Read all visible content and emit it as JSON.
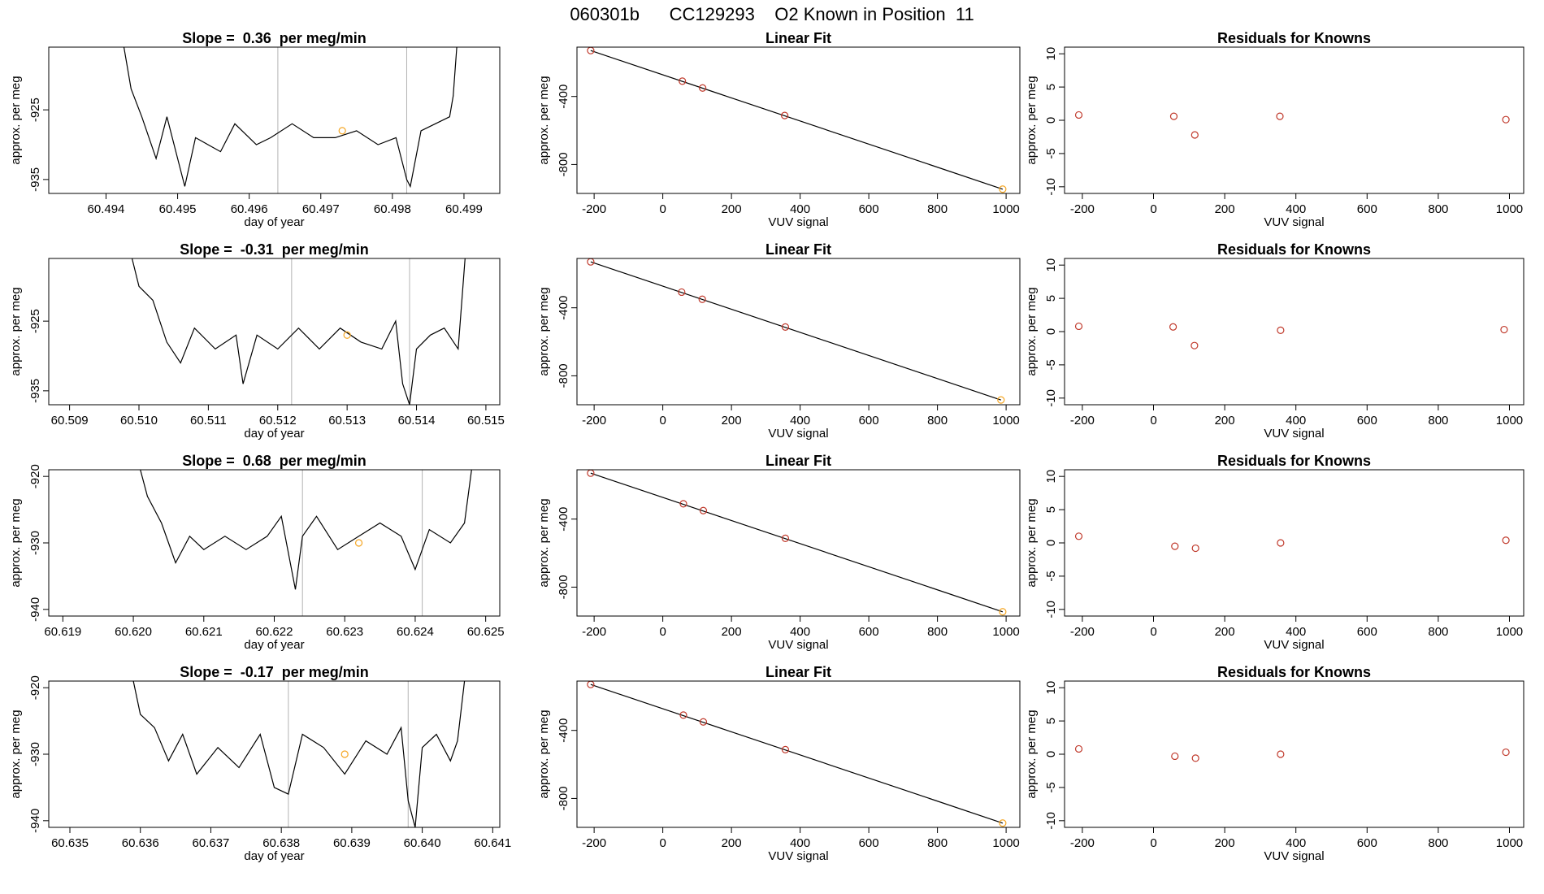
{
  "figure": {
    "title": "060301b      CC129293    O2 Known in Position  11",
    "colors": {
      "line": "#000000",
      "grid": "#b3b3b3",
      "highlight": "#f5a623",
      "residual": "#c0392b"
    }
  },
  "chart_data": [
    {
      "type": "line",
      "title": "Slope =  0.36  per meg/min",
      "xlabel": "day of year",
      "ylabel": "approx. per meg",
      "xlim": [
        60.4932,
        60.4995
      ],
      "ylim": [
        -937,
        -916
      ],
      "xticks": [
        60.494,
        60.495,
        60.496,
        60.497,
        60.498,
        60.499
      ],
      "xtick_labels": [
        "60.494",
        "60.495",
        "60.496",
        "60.497",
        "60.498",
        "60.499"
      ],
      "yticks": [
        -925,
        -935
      ],
      "ytick_labels": [
        "-925",
        "-935"
      ],
      "vlines": [
        60.4964,
        60.4982
      ],
      "highlight": {
        "x": 60.4973,
        "y": -928
      },
      "series": [
        {
          "x": [
            60.49425,
            60.49435,
            60.4945,
            60.4947,
            60.49485,
            60.495,
            60.4951,
            60.49525,
            60.4956,
            60.4958,
            60.4961,
            60.4963,
            60.4966,
            60.4969,
            60.4972,
            60.4975,
            60.4978,
            60.49805,
            60.4982,
            60.49825,
            60.4984,
            60.4986,
            60.4988,
            60.49885,
            60.4989
          ],
          "y": [
            -916,
            -922,
            -926,
            -932,
            -926,
            -932,
            -936,
            -929,
            -931,
            -927,
            -930,
            -929,
            -927,
            -929,
            -929,
            -928,
            -930,
            -929,
            -935,
            -936,
            -928,
            -927,
            -926,
            -923,
            -916
          ]
        }
      ]
    },
    {
      "type": "scatter",
      "title": "Linear Fit",
      "xlabel": "VUV signal",
      "ylabel": "approx. per meg",
      "xlim": [
        -250,
        1040
      ],
      "ylim": [
        -970,
        -110
      ],
      "xticks": [
        -200,
        0,
        200,
        400,
        600,
        800,
        1000
      ],
      "xtick_labels": [
        "-200",
        "0",
        "200",
        "400",
        "600",
        "800",
        "1000"
      ],
      "yticks": [
        -400,
        -800
      ],
      "ytick_labels": [
        "-400",
        "-800"
      ],
      "fit_line": [
        [
          -210,
          -130
        ],
        [
          990,
          -945
        ]
      ],
      "points": [
        {
          "x": -210,
          "y": -130
        },
        {
          "x": 57,
          "y": -310
        },
        {
          "x": 116,
          "y": -350
        },
        {
          "x": 355,
          "y": -512
        },
        {
          "x": 990,
          "y": -945
        }
      ]
    },
    {
      "type": "scatter",
      "title": "Residuals for Knowns",
      "xlabel": "VUV signal",
      "ylabel": "approx. per meg",
      "xlim": [
        -250,
        1040
      ],
      "ylim": [
        -11,
        11
      ],
      "xticks": [
        -200,
        0,
        200,
        400,
        600,
        800,
        1000
      ],
      "xtick_labels": [
        "-200",
        "0",
        "200",
        "400",
        "600",
        "800",
        "1000"
      ],
      "yticks": [
        10,
        5,
        0,
        -5,
        -10
      ],
      "ytick_labels": [
        "10",
        "5",
        "0",
        "-5",
        "-10"
      ],
      "points": [
        {
          "x": -210,
          "y": 0.8
        },
        {
          "x": 57,
          "y": 0.6
        },
        {
          "x": 116,
          "y": -2.2
        },
        {
          "x": 355,
          "y": 0.6
        },
        {
          "x": 990,
          "y": 0.1
        }
      ]
    },
    {
      "type": "line",
      "title": "Slope =  -0.31  per meg/min",
      "xlabel": "day of year",
      "ylabel": "approx. per meg",
      "xlim": [
        60.5087,
        60.5152
      ],
      "ylim": [
        -937,
        -916
      ],
      "xticks": [
        60.509,
        60.51,
        60.511,
        60.512,
        60.513,
        60.514,
        60.515
      ],
      "xtick_labels": [
        "60.509",
        "60.510",
        "60.511",
        "60.512",
        "60.513",
        "60.514",
        "60.515"
      ],
      "yticks": [
        -925,
        -935
      ],
      "ytick_labels": [
        "-925",
        "-935"
      ],
      "vlines": [
        60.5122,
        60.5139
      ],
      "highlight": {
        "x": 60.513,
        "y": -927
      },
      "series": [
        {
          "x": [
            60.5099,
            60.51,
            60.5102,
            60.5104,
            60.5106,
            60.5108,
            60.5111,
            60.5114,
            60.5115,
            60.5117,
            60.512,
            60.5123,
            60.5126,
            60.5129,
            60.5132,
            60.5135,
            60.5137,
            60.5138,
            60.5139,
            60.514,
            60.5142,
            60.5144,
            60.5146,
            60.5147
          ],
          "y": [
            -916,
            -920,
            -922,
            -928,
            -931,
            -926,
            -929,
            -927,
            -934,
            -927,
            -929,
            -926,
            -929,
            -926,
            -928,
            -929,
            -925,
            -934,
            -937,
            -929,
            -927,
            -926,
            -929,
            -916
          ]
        }
      ]
    },
    {
      "type": "scatter",
      "title": "Linear Fit",
      "xlabel": "VUV signal",
      "ylabel": "approx. per meg",
      "xlim": [
        -250,
        1040
      ],
      "ylim": [
        -970,
        -110
      ],
      "xticks": [
        -200,
        0,
        200,
        400,
        600,
        800,
        1000
      ],
      "xtick_labels": [
        "-200",
        "0",
        "200",
        "400",
        "600",
        "800",
        "1000"
      ],
      "yticks": [
        -400,
        -800
      ],
      "ytick_labels": [
        "-400",
        "-800"
      ],
      "fit_line": [
        [
          -210,
          -130
        ],
        [
          985,
          -942
        ]
      ],
      "points": [
        {
          "x": -210,
          "y": -130
        },
        {
          "x": 55,
          "y": -308
        },
        {
          "x": 115,
          "y": -350
        },
        {
          "x": 357,
          "y": -513
        },
        {
          "x": 985,
          "y": -942
        }
      ]
    },
    {
      "type": "scatter",
      "title": "Residuals for Knowns",
      "xlabel": "VUV signal",
      "ylabel": "approx. per meg",
      "xlim": [
        -250,
        1040
      ],
      "ylim": [
        -11,
        11
      ],
      "xticks": [
        -200,
        0,
        200,
        400,
        600,
        800,
        1000
      ],
      "xtick_labels": [
        "-200",
        "0",
        "200",
        "400",
        "600",
        "800",
        "1000"
      ],
      "yticks": [
        10,
        5,
        0,
        -5,
        -10
      ],
      "ytick_labels": [
        "10",
        "5",
        "0",
        "-5",
        "-10"
      ],
      "points": [
        {
          "x": -210,
          "y": 0.8
        },
        {
          "x": 55,
          "y": 0.7
        },
        {
          "x": 115,
          "y": -2.1
        },
        {
          "x": 357,
          "y": 0.2
        },
        {
          "x": 985,
          "y": 0.3
        }
      ]
    },
    {
      "type": "line",
      "title": "Slope =  0.68  per meg/min",
      "xlabel": "day of year",
      "ylabel": "approx. per meg",
      "xlim": [
        60.6188,
        60.6252
      ],
      "ylim": [
        -941,
        -919
      ],
      "xticks": [
        60.619,
        60.62,
        60.621,
        60.622,
        60.623,
        60.624,
        60.625
      ],
      "xtick_labels": [
        "60.619",
        "60.620",
        "60.621",
        "60.622",
        "60.623",
        "60.624",
        "60.625"
      ],
      "yticks": [
        -920,
        -930,
        -940
      ],
      "ytick_labels": [
        "-920",
        "-930",
        "-940"
      ],
      "vlines": [
        60.6224,
        60.6241
      ],
      "highlight": {
        "x": 60.6232,
        "y": -930
      },
      "series": [
        {
          "x": [
            60.6201,
            60.6202,
            60.6204,
            60.6206,
            60.6208,
            60.621,
            60.6213,
            60.6216,
            60.6219,
            60.6221,
            60.6223,
            60.6224,
            60.6226,
            60.6229,
            60.6232,
            60.6235,
            60.6238,
            60.624,
            60.6242,
            60.6245,
            60.6247,
            60.6248
          ],
          "y": [
            -919,
            -923,
            -927,
            -933,
            -929,
            -931,
            -929,
            -931,
            -929,
            -926,
            -937,
            -929,
            -926,
            -931,
            -929,
            -927,
            -929,
            -934,
            -928,
            -930,
            -927,
            -919
          ]
        }
      ]
    },
    {
      "type": "scatter",
      "title": "Linear Fit",
      "xlabel": "VUV signal",
      "ylabel": "approx. per meg",
      "xlim": [
        -250,
        1040
      ],
      "ylim": [
        -970,
        -110
      ],
      "xticks": [
        -200,
        0,
        200,
        400,
        600,
        800,
        1000
      ],
      "xtick_labels": [
        "-200",
        "0",
        "200",
        "400",
        "600",
        "800",
        "1000"
      ],
      "yticks": [
        -400,
        -800
      ],
      "ytick_labels": [
        "-400",
        "-800"
      ],
      "fit_line": [
        [
          -210,
          -130
        ],
        [
          990,
          -945
        ]
      ],
      "points": [
        {
          "x": -210,
          "y": -130
        },
        {
          "x": 60,
          "y": -310
        },
        {
          "x": 118,
          "y": -350
        },
        {
          "x": 357,
          "y": -513
        },
        {
          "x": 990,
          "y": -945
        }
      ]
    },
    {
      "type": "scatter",
      "title": "Residuals for Knowns",
      "xlabel": "VUV signal",
      "ylabel": "approx. per meg",
      "xlim": [
        -250,
        1040
      ],
      "ylim": [
        -11,
        11
      ],
      "xticks": [
        -200,
        0,
        200,
        400,
        600,
        800,
        1000
      ],
      "xtick_labels": [
        "-200",
        "0",
        "200",
        "400",
        "600",
        "800",
        "1000"
      ],
      "yticks": [
        10,
        5,
        0,
        -5,
        -10
      ],
      "ytick_labels": [
        "10",
        "5",
        "0",
        "-5",
        "-10"
      ],
      "points": [
        {
          "x": -210,
          "y": 1.0
        },
        {
          "x": 60,
          "y": -0.5
        },
        {
          "x": 118,
          "y": -0.8
        },
        {
          "x": 357,
          "y": 0.0
        },
        {
          "x": 990,
          "y": 0.4
        }
      ]
    },
    {
      "type": "line",
      "title": "Slope =  -0.17  per meg/min",
      "xlabel": "day of year",
      "ylabel": "approx. per meg",
      "xlim": [
        60.6347,
        60.6411
      ],
      "ylim": [
        -941,
        -919
      ],
      "xticks": [
        60.635,
        60.636,
        60.637,
        60.638,
        60.639,
        60.64,
        60.641
      ],
      "xtick_labels": [
        "60.635",
        "60.636",
        "60.637",
        "60.638",
        "60.639",
        "60.640",
        "60.641"
      ],
      "yticks": [
        -920,
        -930,
        -940
      ],
      "ytick_labels": [
        "-920",
        "-930",
        "-940"
      ],
      "vlines": [
        60.6381,
        60.6398
      ],
      "highlight": {
        "x": 60.6389,
        "y": -930
      },
      "series": [
        {
          "x": [
            60.6359,
            60.636,
            60.6362,
            60.6364,
            60.6366,
            60.6368,
            60.6371,
            60.6374,
            60.6377,
            60.6379,
            60.6381,
            60.6383,
            60.6386,
            60.6389,
            60.6392,
            60.6395,
            60.6397,
            60.6398,
            60.6399,
            60.64,
            60.6402,
            60.6404,
            60.6405,
            60.6406
          ],
          "y": [
            -919,
            -924,
            -926,
            -931,
            -927,
            -933,
            -929,
            -932,
            -927,
            -935,
            -936,
            -927,
            -929,
            -933,
            -928,
            -930,
            -926,
            -937,
            -941,
            -929,
            -927,
            -931,
            -928,
            -919
          ]
        }
      ]
    },
    {
      "type": "scatter",
      "title": "Linear Fit",
      "xlabel": "VUV signal",
      "ylabel": "approx. per meg",
      "xlim": [
        -250,
        1040
      ],
      "ylim": [
        -970,
        -110
      ],
      "xticks": [
        -200,
        0,
        200,
        400,
        600,
        800,
        1000
      ],
      "xtick_labels": [
        "-200",
        "0",
        "200",
        "400",
        "600",
        "800",
        "1000"
      ],
      "yticks": [
        -400,
        -800
      ],
      "ytick_labels": [
        "-400",
        "-800"
      ],
      "fit_line": [
        [
          -210,
          -130
        ],
        [
          990,
          -945
        ]
      ],
      "points": [
        {
          "x": -210,
          "y": -130
        },
        {
          "x": 60,
          "y": -310
        },
        {
          "x": 118,
          "y": -350
        },
        {
          "x": 357,
          "y": -513
        },
        {
          "x": 990,
          "y": -945
        }
      ]
    },
    {
      "type": "scatter",
      "title": "Residuals for Knowns",
      "xlabel": "VUV signal",
      "ylabel": "approx. per meg",
      "xlim": [
        -250,
        1040
      ],
      "ylim": [
        -11,
        11
      ],
      "xticks": [
        -200,
        0,
        200,
        400,
        600,
        800,
        1000
      ],
      "xtick_labels": [
        "-200",
        "0",
        "200",
        "400",
        "600",
        "800",
        "1000"
      ],
      "yticks": [
        10,
        5,
        0,
        -5,
        -10
      ],
      "ytick_labels": [
        "10",
        "5",
        "0",
        "-5",
        "-10"
      ],
      "points": [
        {
          "x": -210,
          "y": 0.8
        },
        {
          "x": 60,
          "y": -0.3
        },
        {
          "x": 118,
          "y": -0.6
        },
        {
          "x": 357,
          "y": 0.0
        },
        {
          "x": 990,
          "y": 0.3
        }
      ]
    }
  ]
}
